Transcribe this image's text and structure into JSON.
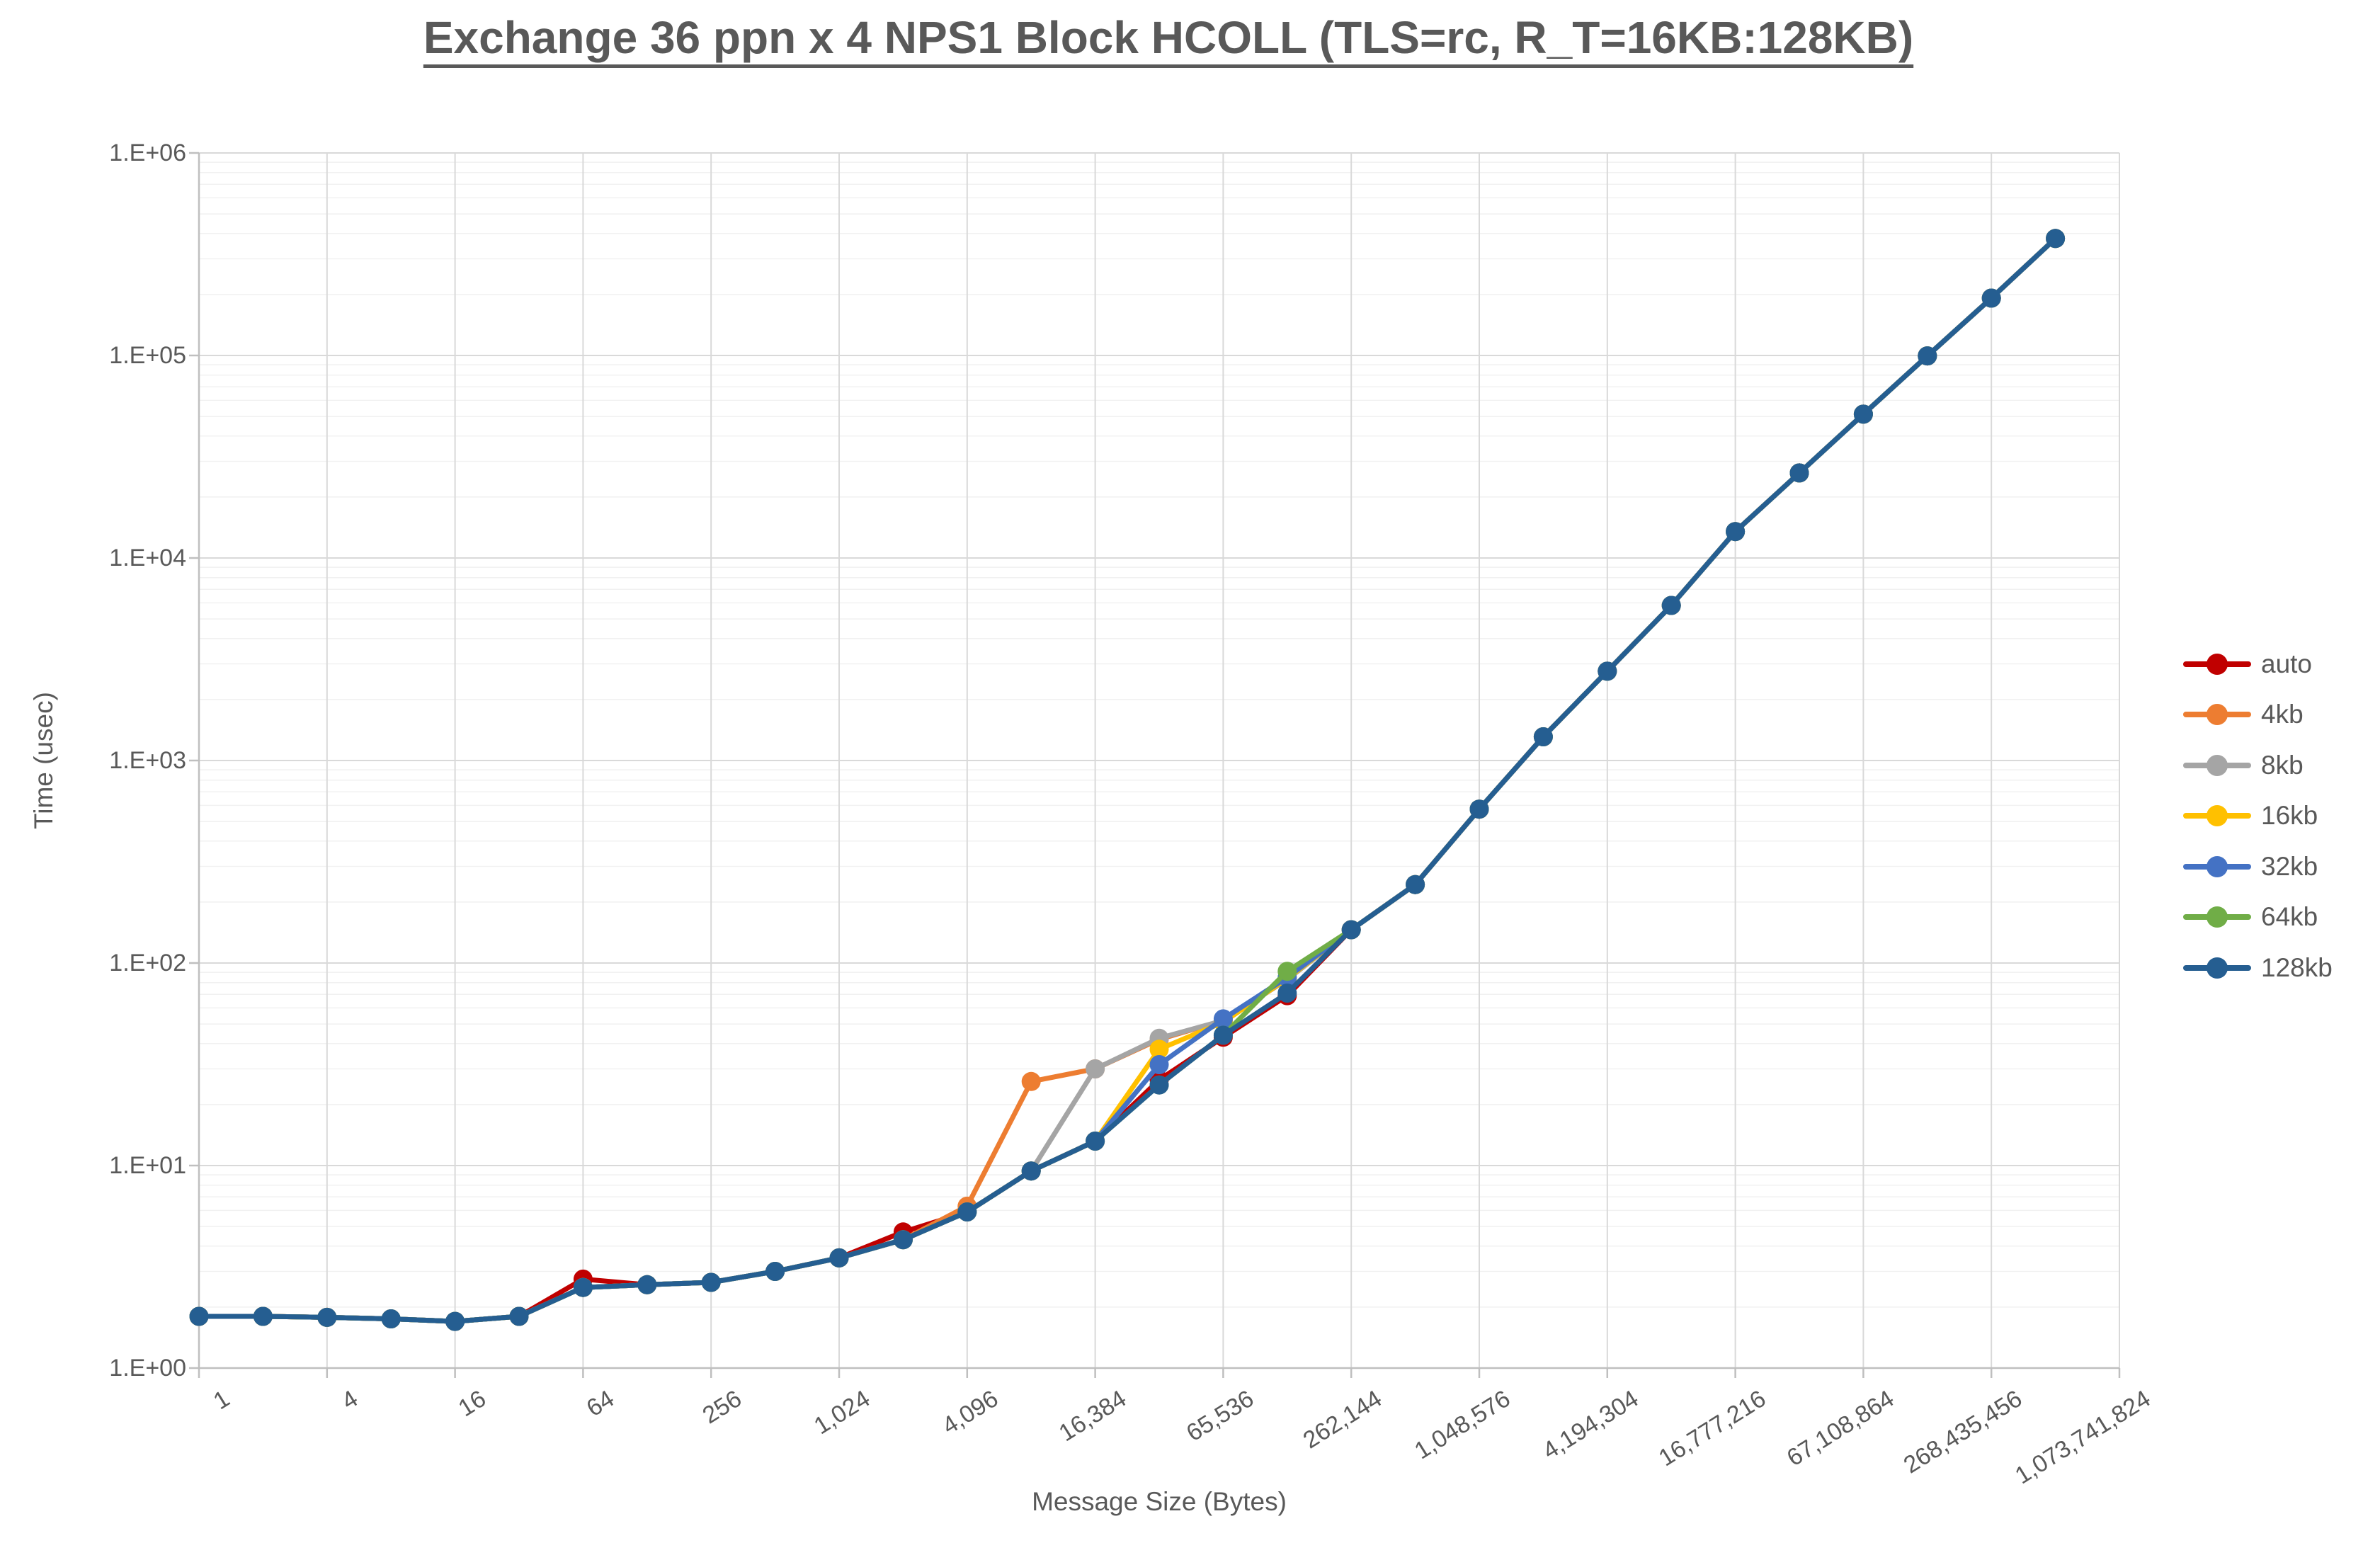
{
  "chart": {
    "title": "Exchange 36 ppn x 4 NPS1 Block HCOLL (TLS=rc, R_T=16KB:128KB)",
    "x_axis_title": "Message Size (Bytes)",
    "y_axis_title": "Time (usec)"
  },
  "chart_data": {
    "type": "line",
    "title": "Exchange 36 ppn x 4 NPS1 Block HCOLL (TLS=rc, R_T=16KB:128KB)",
    "xlabel": "Message Size (Bytes)",
    "ylabel": "Time (usec)",
    "x_scale": "log2_categories",
    "y_scale": "log10",
    "ylim": [
      1,
      1000000
    ],
    "legend_position": "right",
    "grid": {
      "major_color": "#D9D9D9",
      "minor_color": "#F1F1F1",
      "axis_color": "#BFBFBF"
    },
    "y_tick_labels": [
      "1.E+06",
      "1.E+05",
      "1.E+04",
      "1.E+03",
      "1.E+02",
      "1.E+01",
      "1.E+00"
    ],
    "x_tick_labels": [
      "1",
      "4",
      "16",
      "64",
      "256",
      "1,024",
      "4,096",
      "16,384",
      "65,536",
      "262,144",
      "1,048,576",
      "4,194,304",
      "16,777,216",
      "67,108,864",
      "268,435,456",
      "1,073,741,824"
    ],
    "x_values": [
      1,
      2,
      4,
      8,
      16,
      32,
      64,
      128,
      256,
      512,
      1024,
      2048,
      4096,
      8192,
      16384,
      32768,
      65536,
      131072,
      262144,
      524288,
      1048576,
      2097152,
      4194304,
      8388608,
      16777216,
      33554432,
      67108864,
      134217728,
      268435456,
      536870912
    ],
    "series": [
      {
        "name": "auto",
        "color": "#C00000",
        "values": [
          1.8,
          1.8,
          1.78,
          1.75,
          1.7,
          1.8,
          2.75,
          2.58,
          2.65,
          3.0,
          3.5,
          4.7,
          5.9,
          9.4,
          13.2,
          26.5,
          43,
          69,
          146,
          244,
          575,
          1310,
          2760,
          5830,
          13500,
          26300,
          51300,
          99500,
          192000,
          378000
        ]
      },
      {
        "name": "4kb",
        "color": "#ED7D31",
        "values": [
          1.8,
          1.8,
          1.78,
          1.75,
          1.7,
          1.8,
          2.5,
          2.58,
          2.65,
          3.0,
          3.5,
          4.3,
          6.3,
          26,
          30,
          42,
          52,
          83,
          146,
          244,
          575,
          1310,
          2760,
          5830,
          13500,
          26300,
          51300,
          99500,
          192000,
          378000
        ]
      },
      {
        "name": "8kb",
        "color": "#A5A5A5",
        "values": [
          1.8,
          1.8,
          1.78,
          1.75,
          1.7,
          1.8,
          2.5,
          2.58,
          2.65,
          3.0,
          3.5,
          4.3,
          5.9,
          9.4,
          30,
          42.5,
          52,
          83,
          146,
          244,
          575,
          1310,
          2760,
          5830,
          13500,
          26300,
          51300,
          99500,
          192000,
          378000
        ]
      },
      {
        "name": "16kb",
        "color": "#FFC000",
        "values": [
          1.8,
          1.8,
          1.78,
          1.75,
          1.7,
          1.8,
          2.5,
          2.58,
          2.65,
          3.0,
          3.5,
          4.3,
          5.9,
          9.4,
          13.2,
          37.5,
          51,
          84,
          146,
          244,
          575,
          1310,
          2760,
          5830,
          13500,
          26300,
          51300,
          99500,
          192000,
          378000
        ]
      },
      {
        "name": "32kb",
        "color": "#4472C4",
        "values": [
          1.8,
          1.8,
          1.78,
          1.75,
          1.7,
          1.8,
          2.5,
          2.58,
          2.65,
          3.0,
          3.5,
          4.3,
          5.9,
          9.4,
          13.2,
          31.5,
          53,
          85,
          146,
          244,
          575,
          1310,
          2760,
          5830,
          13500,
          26300,
          51300,
          99500,
          192000,
          378000
        ]
      },
      {
        "name": "64kb",
        "color": "#70AD47",
        "values": [
          1.8,
          1.8,
          1.78,
          1.75,
          1.7,
          1.8,
          2.5,
          2.58,
          2.65,
          3.0,
          3.5,
          4.3,
          5.9,
          9.4,
          13.2,
          25,
          44,
          91,
          146,
          244,
          575,
          1310,
          2760,
          5830,
          13500,
          26300,
          51300,
          99500,
          192000,
          378000
        ]
      },
      {
        "name": "128kb",
        "color": "#255E91",
        "values": [
          1.8,
          1.8,
          1.78,
          1.75,
          1.7,
          1.8,
          2.5,
          2.58,
          2.65,
          3.0,
          3.5,
          4.3,
          5.9,
          9.4,
          13.2,
          25,
          44,
          71,
          146,
          244,
          575,
          1310,
          2760,
          5830,
          13500,
          26300,
          51300,
          99500,
          192000,
          378000
        ]
      }
    ]
  }
}
